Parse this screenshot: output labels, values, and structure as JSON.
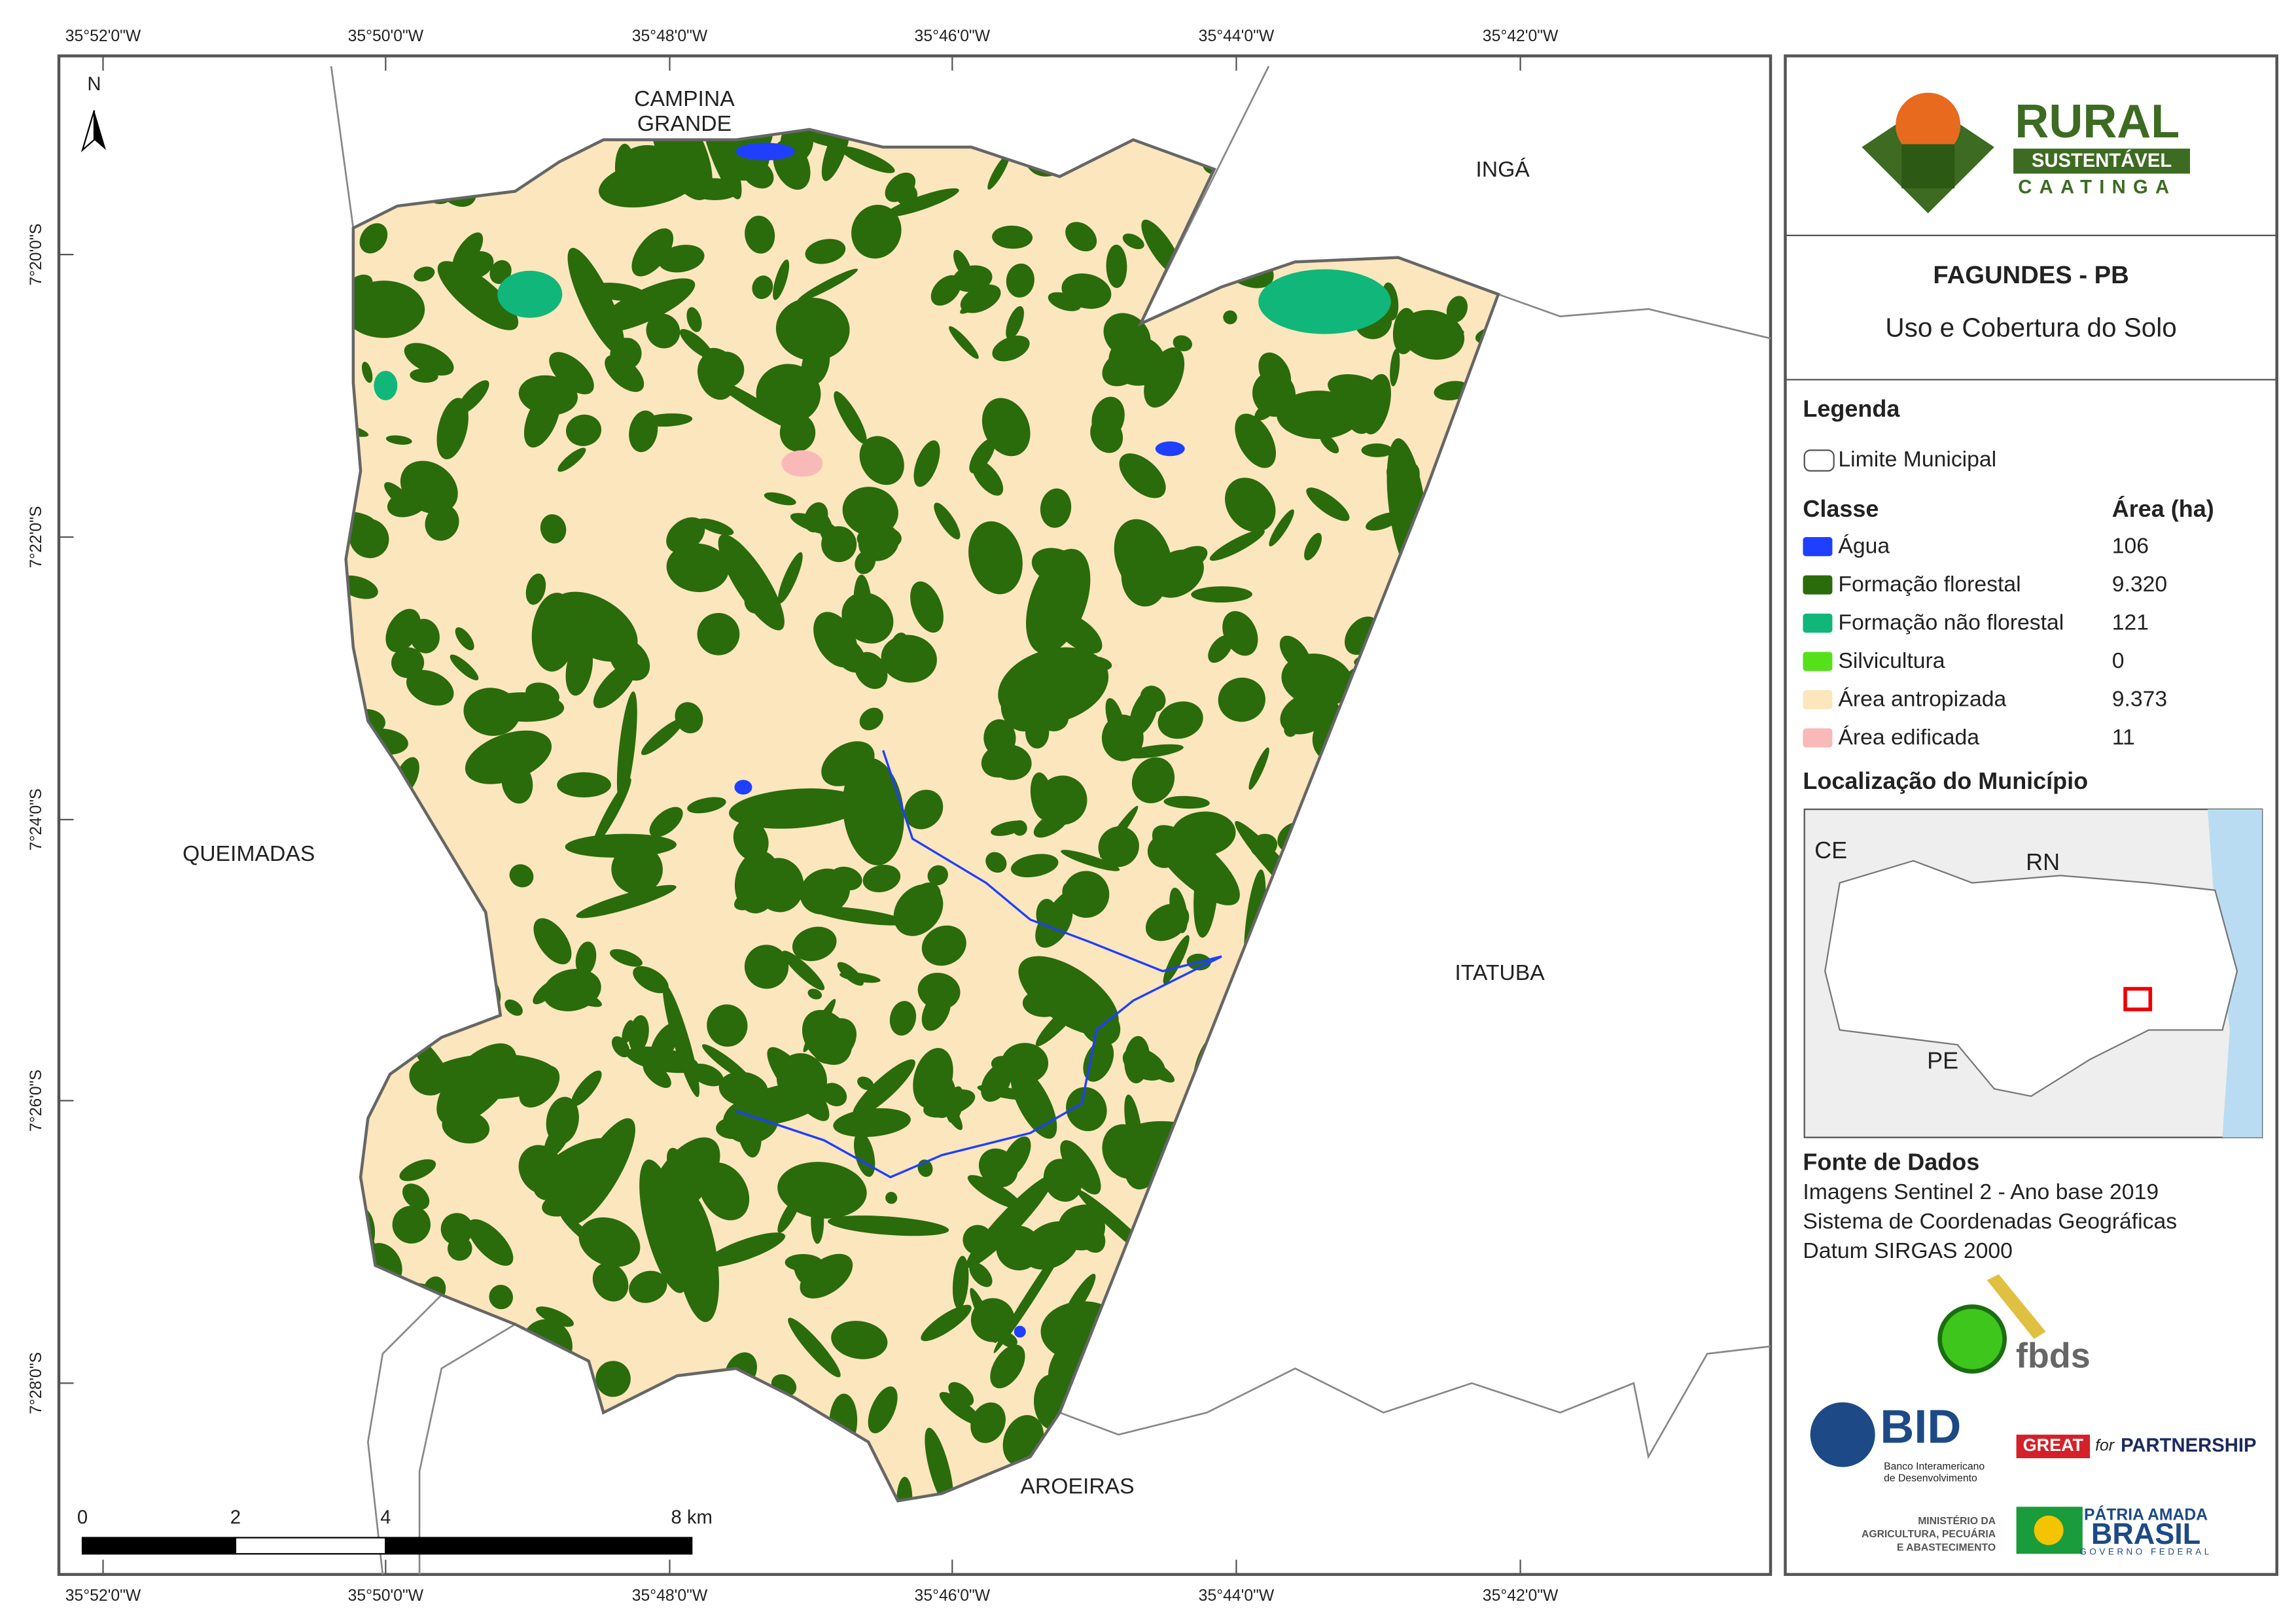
{
  "map": {
    "top_ticks": [
      "35°52'0\"W",
      "35°50'0\"W",
      "35°48'0\"W",
      "35°46'0\"W",
      "35°44'0\"W",
      "35°42'0\"W"
    ],
    "bottom_ticks": [
      "35°52'0\"W",
      "35°50'0\"W",
      "35°48'0\"W",
      "35°46'0\"W",
      "35°44'0\"W",
      "35°42'0\"W"
    ],
    "left_ticks": [
      "7°20'0\"S",
      "7°22'0\"S",
      "7°24'0\"S",
      "7°26'0\"S",
      "7°28'0\"S"
    ],
    "north": "N",
    "places": {
      "campina": [
        "CAMPINA",
        "GRANDE"
      ],
      "inga": "INGÁ",
      "queimadas": "QUEIMADAS",
      "itatuba": "ITATUBA",
      "aroeiras": "AROEIRAS"
    },
    "scale": [
      "0",
      "2",
      "4",
      "8 km"
    ]
  },
  "panel": {
    "logo": {
      "title": "RURAL",
      "subtitle": "SUSTENTÁVEL",
      "region": "CAATINGA"
    },
    "title": "FAGUNDES - PB",
    "subtitle": "Uso e Cobertura do Solo",
    "legend": {
      "title": "Legenda",
      "boundary": "Limite Municipal",
      "class_header": "Classe",
      "area_header": "Área (ha)",
      "classes": [
        {
          "name": "Água",
          "area": "106",
          "color": "#1f3fff"
        },
        {
          "name": "Formação florestal",
          "area": "9.320",
          "color": "#2a6b0c"
        },
        {
          "name": "Formação não florestal",
          "area": "121",
          "color": "#11b67a"
        },
        {
          "name": "Silvicultura",
          "area": "0",
          "color": "#55e01a"
        },
        {
          "name": "Área antropizada",
          "area": "9.373",
          "color": "#fbe6bd"
        },
        {
          "name": "Área edificada",
          "area": "11",
          "color": "#f9b9b9"
        }
      ]
    },
    "location": {
      "title": "Localização do Município",
      "labels": [
        "CE",
        "RN",
        "PE"
      ]
    },
    "sources": {
      "title": "Fonte de Dados",
      "lines": [
        "Imagens Sentinel 2 - Ano base 2019",
        "Sistema de Coordenadas Geográficas",
        "Datum SIRGAS 2000"
      ]
    },
    "logos": {
      "fbds": "fbds",
      "bid": "BID",
      "bid_name": [
        "Banco Interamericano",
        "de Desenvolvimento"
      ],
      "great": "GREAT",
      "for": "for",
      "partnership": "PARTNERSHIP",
      "ministry": [
        "MINISTÉRIO DA",
        "AGRICULTURA, PECUÁRIA",
        "E ABASTECIMENTO"
      ],
      "patria": "PÁTRIA AMADA",
      "brasil": "BRASIL",
      "gov": "GOVERNO FEDERAL"
    }
  }
}
